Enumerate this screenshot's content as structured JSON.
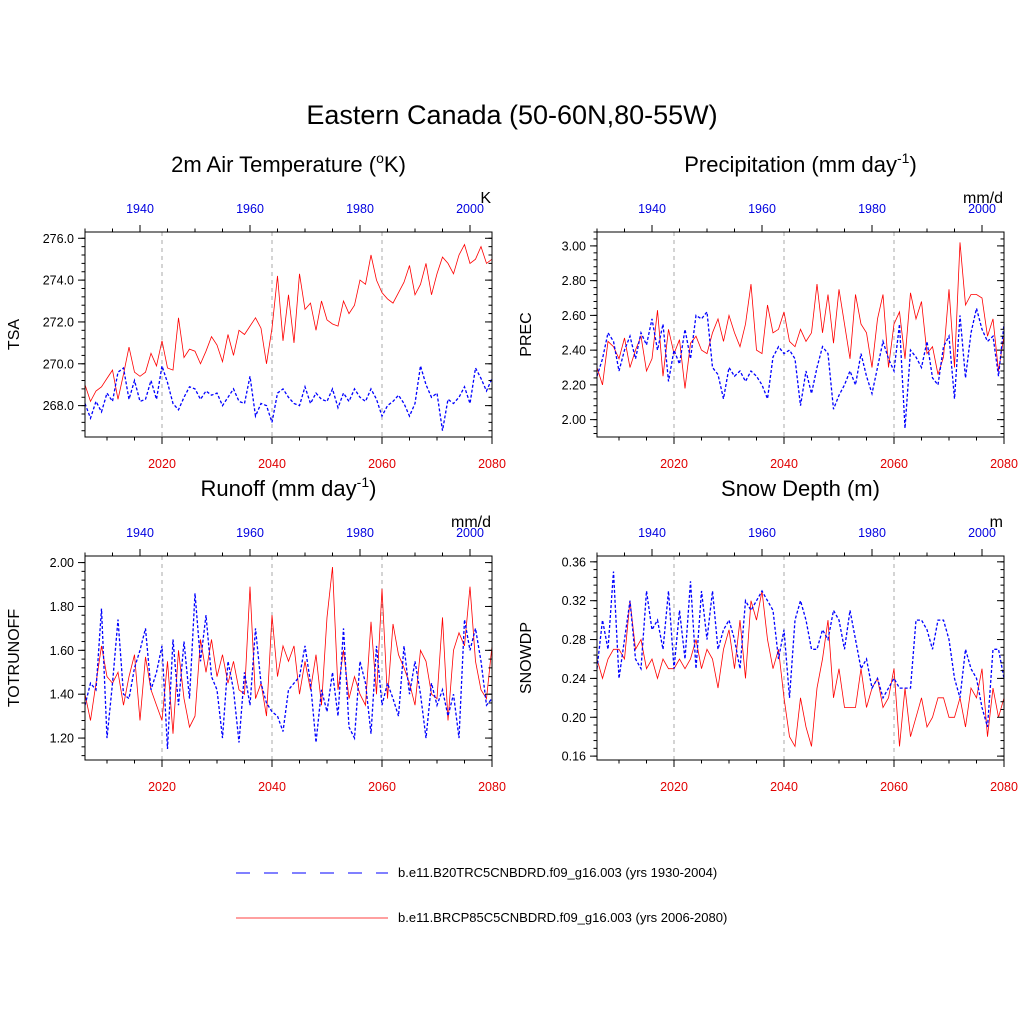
{
  "title": "Eastern Canada (50-60N,80-55W)",
  "colors": {
    "rcp": "#ff0000",
    "hist": "#0000ff",
    "grid": "#aaaaaa"
  },
  "legend": [
    {
      "series": "hist",
      "style": "dashed",
      "label": "b.e11.B20TRC5CNBDRD.f09_g16.003 (yrs 1930-2004)"
    },
    {
      "series": "rcp",
      "style": "solid",
      "label": "b.e11.BRCP85C5CNBDRD.f09_g16.003 (yrs 2006-2080)"
    }
  ],
  "chart_data": [
    {
      "type": "line",
      "title": "2m Air Temperature (",
      "title_sup": "o",
      "title_after": "K)",
      "ylabel": "TSA",
      "units": "K",
      "ylim": [
        266.5,
        276.3
      ],
      "yticks": [
        268.0,
        270.0,
        272.0,
        274.0,
        276.0
      ],
      "ytick_labels": [
        "268.0",
        "270.0",
        "272.0",
        "274.0",
        "276.0"
      ],
      "bottom_axis": {
        "xlim": [
          2006,
          2080
        ],
        "ticks": [
          2020,
          2040,
          2060,
          2080
        ]
      },
      "top_axis": {
        "xlim": [
          1930,
          2004
        ],
        "ticks": [
          1940,
          1960,
          1980,
          2000
        ]
      },
      "series": [
        {
          "name": "b.e11.BRCP85C5CNBDRD.f09_g16.003 (yrs 2006-2080)",
          "key": "rcp",
          "x_start": 2006,
          "values": [
            269.0,
            268.2,
            268.7,
            268.9,
            269.3,
            269.7,
            268.3,
            269.5,
            270.8,
            269.6,
            269.4,
            269.6,
            270.5,
            269.9,
            271.1,
            269.8,
            269.7,
            272.2,
            270.3,
            270.7,
            270.6,
            270.0,
            270.6,
            271.3,
            270.9,
            270.1,
            271.4,
            270.4,
            271.6,
            271.4,
            271.8,
            272.2,
            271.7,
            270.0,
            271.7,
            274.2,
            271.1,
            273.3,
            271.0,
            274.3,
            272.6,
            272.9,
            271.6,
            273.0,
            272.1,
            271.9,
            271.8,
            273.0,
            272.4,
            272.8,
            274.0,
            273.8,
            275.2,
            274.0,
            273.4,
            273.1,
            272.9,
            273.4,
            273.9,
            274.7,
            273.3,
            273.8,
            274.8,
            273.3,
            274.3,
            275.1,
            274.8,
            274.3,
            275.2,
            275.7,
            274.8,
            275.0,
            275.6,
            274.8,
            275.0
          ]
        },
        {
          "name": "b.e11.B20TRC5CNBDRD.f09_g16.003 (yrs 1930-2004)",
          "key": "hist",
          "x_start": 1930,
          "values": [
            268.1,
            267.4,
            268.2,
            267.7,
            268.6,
            268.2,
            269.6,
            269.8,
            268.3,
            269.2,
            268.2,
            268.3,
            269.2,
            268.3,
            269.9,
            269.1,
            268.1,
            267.8,
            268.4,
            268.9,
            268.8,
            268.3,
            268.7,
            268.5,
            268.6,
            268.0,
            268.4,
            268.8,
            268.2,
            268.1,
            269.4,
            267.5,
            268.1,
            268.0,
            267.2,
            268.6,
            268.8,
            268.4,
            268.1,
            268.0,
            268.9,
            268.1,
            268.6,
            268.3,
            268.2,
            268.8,
            267.9,
            268.6,
            268.2,
            268.8,
            268.4,
            268.2,
            268.8,
            268.3,
            267.5,
            268.0,
            268.2,
            268.5,
            268.1,
            267.5,
            268.1,
            269.9,
            269.0,
            268.4,
            268.6,
            266.8,
            268.3,
            268.1,
            268.4,
            268.9,
            268.1,
            269.8,
            269.3,
            268.7,
            269.3
          ]
        }
      ]
    },
    {
      "type": "line",
      "title": "Precipitation (mm day",
      "title_sup": "-1",
      "title_after": ")",
      "ylabel": "PREC",
      "units": "mm/d",
      "ylim": [
        1.9,
        3.08
      ],
      "yticks": [
        2.0,
        2.2,
        2.4,
        2.6,
        2.8,
        3.0
      ],
      "ytick_labels": [
        "2.00",
        "2.20",
        "2.40",
        "2.60",
        "2.80",
        "3.00"
      ],
      "bottom_axis": {
        "xlim": [
          2006,
          2080
        ],
        "ticks": [
          2020,
          2040,
          2060,
          2080
        ]
      },
      "top_axis": {
        "xlim": [
          1930,
          2004
        ],
        "ticks": [
          1940,
          1960,
          1980,
          2000
        ]
      },
      "series": [
        {
          "name": "b.e11.BRCP85C5CNBDRD.f09_g16.003 (yrs 2006-2080)",
          "key": "rcp",
          "x_start": 2006,
          "values": [
            2.3,
            2.2,
            2.45,
            2.42,
            2.35,
            2.47,
            2.3,
            2.4,
            2.48,
            2.28,
            2.35,
            2.63,
            2.25,
            2.52,
            2.38,
            2.46,
            2.18,
            2.44,
            2.48,
            2.4,
            2.38,
            2.5,
            2.58,
            2.45,
            2.6,
            2.5,
            2.42,
            2.55,
            2.78,
            2.4,
            2.38,
            2.66,
            2.5,
            2.52,
            2.62,
            2.45,
            2.42,
            2.52,
            2.45,
            2.5,
            2.78,
            2.5,
            2.72,
            2.44,
            2.75,
            2.55,
            2.35,
            2.72,
            2.55,
            2.5,
            2.3,
            2.58,
            2.72,
            2.3,
            2.55,
            2.62,
            2.35,
            2.73,
            2.58,
            2.68,
            2.38,
            2.42,
            2.26,
            2.36,
            2.75,
            2.3,
            3.02,
            2.66,
            2.72,
            2.72,
            2.7,
            2.48,
            2.58,
            2.28,
            2.48
          ]
        },
        {
          "name": "b.e11.B20TRC5CNBDRD.f09_g16.003 (yrs 1930-2004)",
          "key": "hist",
          "x_start": 1930,
          "values": [
            2.25,
            2.35,
            2.5,
            2.45,
            2.28,
            2.4,
            2.48,
            2.35,
            2.5,
            2.43,
            2.58,
            2.4,
            2.55,
            2.22,
            2.4,
            2.32,
            2.52,
            2.35,
            2.6,
            2.58,
            2.62,
            2.3,
            2.26,
            2.12,
            2.3,
            2.25,
            2.28,
            2.22,
            2.28,
            2.25,
            2.2,
            2.12,
            2.36,
            2.42,
            2.38,
            2.4,
            2.35,
            2.08,
            2.28,
            2.15,
            2.3,
            2.42,
            2.38,
            2.06,
            2.14,
            2.2,
            2.28,
            2.2,
            2.38,
            2.25,
            2.15,
            2.3,
            2.45,
            2.35,
            2.28,
            2.55,
            1.95,
            2.4,
            2.36,
            2.3,
            2.45,
            2.24,
            2.2,
            2.42,
            2.48,
            2.12,
            2.6,
            2.24,
            2.5,
            2.64,
            2.52,
            2.45,
            2.48,
            2.25,
            2.55
          ]
        }
      ]
    },
    {
      "type": "line",
      "title": "Runoff (mm day",
      "title_sup": "-1",
      "title_after": ")",
      "ylabel": "TOTRUNOFF",
      "units": "mm/d",
      "ylim": [
        1.1,
        2.03
      ],
      "yticks": [
        1.2,
        1.4,
        1.6,
        1.8,
        2.0
      ],
      "ytick_labels": [
        "1.20",
        "1.40",
        "1.60",
        "1.80",
        "2.00"
      ],
      "bottom_axis": {
        "xlim": [
          2006,
          2080
        ],
        "ticks": [
          2020,
          2040,
          2060,
          2080
        ]
      },
      "top_axis": {
        "xlim": [
          1930,
          2004
        ],
        "ticks": [
          1940,
          1960,
          1980,
          2000
        ]
      },
      "series": [
        {
          "name": "b.e11.BRCP85C5CNBDRD.f09_g16.003 (yrs 2006-2080)",
          "key": "rcp",
          "x_start": 2006,
          "values": [
            1.4,
            1.28,
            1.45,
            1.62,
            1.48,
            1.45,
            1.5,
            1.35,
            1.48,
            1.58,
            1.28,
            1.57,
            1.42,
            1.35,
            1.28,
            1.55,
            1.22,
            1.6,
            1.38,
            1.25,
            1.3,
            1.65,
            1.5,
            1.65,
            1.48,
            1.58,
            1.45,
            1.55,
            1.42,
            1.4,
            1.89,
            1.38,
            1.45,
            1.3,
            1.76,
            1.48,
            1.62,
            1.55,
            1.62,
            1.4,
            1.55,
            1.42,
            1.58,
            1.35,
            1.75,
            1.98,
            1.42,
            1.6,
            1.38,
            1.48,
            1.4,
            1.35,
            1.73,
            1.4,
            1.88,
            1.38,
            1.72,
            1.58,
            1.52,
            1.45,
            1.35,
            1.6,
            1.55,
            1.4,
            1.38,
            1.75,
            1.28,
            1.6,
            1.68,
            1.62,
            1.89,
            1.55,
            1.42,
            1.38,
            1.62
          ]
        },
        {
          "name": "b.e11.B20TRC5CNBDRD.f09_g16.003 (yrs 1930-2004)",
          "key": "hist",
          "x_start": 1930,
          "values": [
            1.35,
            1.45,
            1.42,
            1.79,
            1.2,
            1.45,
            1.74,
            1.4,
            1.38,
            1.52,
            1.6,
            1.7,
            1.42,
            1.5,
            1.62,
            1.15,
            1.65,
            1.35,
            1.64,
            1.38,
            1.86,
            1.55,
            1.76,
            1.48,
            1.42,
            1.2,
            1.55,
            1.42,
            1.18,
            1.5,
            1.35,
            1.7,
            1.45,
            1.36,
            1.32,
            1.3,
            1.23,
            1.42,
            1.45,
            1.48,
            1.62,
            1.45,
            1.18,
            1.42,
            1.32,
            1.5,
            1.3,
            1.7,
            1.25,
            1.2,
            1.55,
            1.45,
            1.22,
            1.62,
            1.35,
            1.45,
            1.38,
            1.3,
            1.62,
            1.4,
            1.55,
            1.4,
            1.2,
            1.45,
            1.35,
            1.42,
            1.3,
            1.4,
            1.2,
            1.74,
            1.6,
            1.7,
            1.55,
            1.35,
            1.38
          ]
        }
      ]
    },
    {
      "type": "line",
      "title": "Snow Depth (m)",
      "title_sup": "",
      "title_after": "",
      "ylabel": "SNOWDP",
      "units": "m",
      "ylim": [
        0.156,
        0.366
      ],
      "yticks": [
        0.16,
        0.2,
        0.24,
        0.28,
        0.32,
        0.36
      ],
      "ytick_labels": [
        "0.16",
        "0.20",
        "0.24",
        "0.28",
        "0.32",
        "0.36"
      ],
      "bottom_axis": {
        "xlim": [
          2006,
          2080
        ],
        "ticks": [
          2020,
          2040,
          2060,
          2080
        ]
      },
      "top_axis": {
        "xlim": [
          1930,
          2004
        ],
        "ticks": [
          1940,
          1960,
          1980,
          2000
        ]
      },
      "series": [
        {
          "name": "b.e11.BRCP85C5CNBDRD.f09_g16.003 (yrs 2006-2080)",
          "key": "rcp",
          "x_start": 2006,
          "values": [
            0.26,
            0.24,
            0.26,
            0.27,
            0.27,
            0.26,
            0.32,
            0.27,
            0.28,
            0.25,
            0.26,
            0.24,
            0.26,
            0.25,
            0.25,
            0.26,
            0.25,
            0.26,
            0.28,
            0.25,
            0.27,
            0.26,
            0.23,
            0.27,
            0.29,
            0.25,
            0.3,
            0.24,
            0.32,
            0.3,
            0.33,
            0.28,
            0.25,
            0.27,
            0.22,
            0.18,
            0.17,
            0.22,
            0.19,
            0.17,
            0.23,
            0.26,
            0.3,
            0.22,
            0.25,
            0.21,
            0.21,
            0.21,
            0.25,
            0.21,
            0.23,
            0.24,
            0.21,
            0.22,
            0.25,
            0.17,
            0.23,
            0.18,
            0.2,
            0.22,
            0.19,
            0.2,
            0.22,
            0.22,
            0.2,
            0.2,
            0.22,
            0.19,
            0.23,
            0.22,
            0.25,
            0.18,
            0.23,
            0.2,
            0.22
          ]
        },
        {
          "name": "b.e11.B20TRC5CNBDRD.f09_g16.003 (yrs 1930-2004)",
          "key": "hist",
          "x_start": 1930,
          "values": [
            0.25,
            0.3,
            0.27,
            0.35,
            0.24,
            0.28,
            0.32,
            0.26,
            0.25,
            0.33,
            0.29,
            0.3,
            0.27,
            0.33,
            0.25,
            0.31,
            0.26,
            0.34,
            0.25,
            0.33,
            0.28,
            0.33,
            0.27,
            0.29,
            0.3,
            0.28,
            0.25,
            0.32,
            0.31,
            0.32,
            0.33,
            0.32,
            0.31,
            0.26,
            0.29,
            0.22,
            0.3,
            0.32,
            0.3,
            0.27,
            0.27,
            0.29,
            0.28,
            0.31,
            0.3,
            0.27,
            0.31,
            0.28,
            0.25,
            0.26,
            0.23,
            0.24,
            0.22,
            0.23,
            0.24,
            0.23,
            0.23,
            0.23,
            0.3,
            0.3,
            0.29,
            0.27,
            0.3,
            0.3,
            0.28,
            0.24,
            0.22,
            0.27,
            0.25,
            0.24,
            0.21,
            0.19,
            0.27,
            0.27,
            0.24
          ]
        }
      ]
    }
  ]
}
